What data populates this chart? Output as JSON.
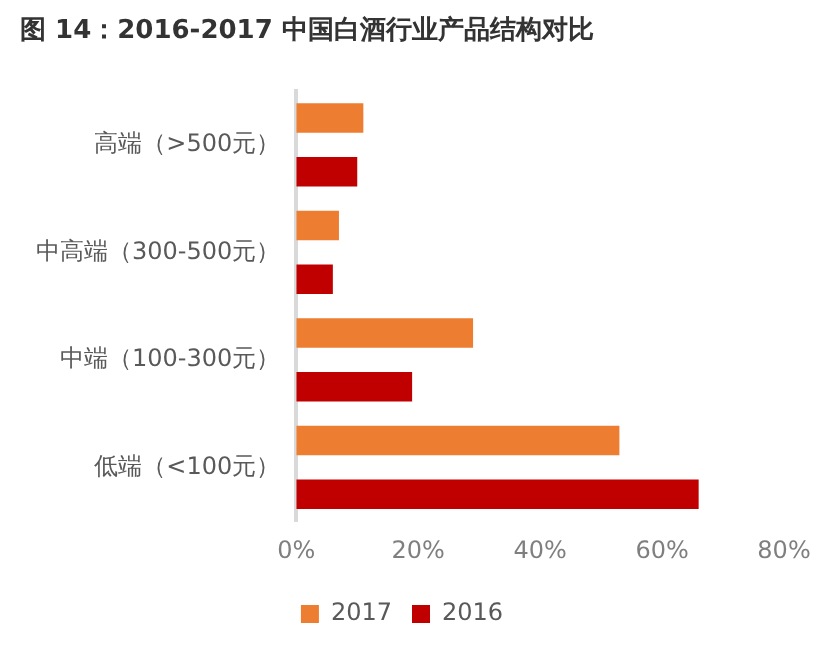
{
  "chart_data": {
    "type": "bar",
    "orientation": "horizontal",
    "title": "图 14：2016-2017 中国白酒行业产品结构对比",
    "categories": [
      "高端（>500元）",
      "中高端（300-500元）",
      "中端（100-300元）",
      "低端（<100元）"
    ],
    "series": [
      {
        "name": "2017",
        "color": "#ed7d31",
        "values": [
          11,
          7,
          29,
          53
        ]
      },
      {
        "name": "2016",
        "color": "#c00000",
        "values": [
          10,
          6,
          19,
          66
        ]
      }
    ],
    "xlim": [
      0,
      80
    ],
    "xticks": [
      {
        "value": 0,
        "label": "0%"
      },
      {
        "value": 20,
        "label": "20%"
      },
      {
        "value": 40,
        "label": "40%"
      },
      {
        "value": 60,
        "label": "60%"
      },
      {
        "value": 80,
        "label": "80%"
      }
    ],
    "grid": false,
    "legend": "bottom"
  }
}
